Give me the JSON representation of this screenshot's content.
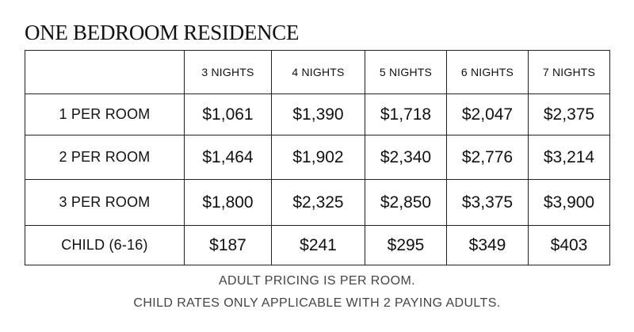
{
  "title": "ONE BEDROOM RESIDENCE",
  "columns": [
    "3 NIGHTS",
    "4 NIGHTS",
    "5 NIGHTS",
    "6 NIGHTS",
    "7 NIGHTS"
  ],
  "rows": [
    {
      "label": "1 PER ROOM",
      "values": [
        "$1,061",
        "$1,390",
        "$1,718",
        "$2,047",
        "$2,375"
      ]
    },
    {
      "label": "2 PER ROOM",
      "values": [
        "$1,464",
        "$1,902",
        "$2,340",
        "$2,776",
        "$3,214"
      ]
    },
    {
      "label": "3 PER ROOM",
      "values": [
        "$1,800",
        "$2,325",
        "$2,850",
        "$3,375",
        "$3,900"
      ]
    },
    {
      "label": "CHILD (6-16)",
      "values": [
        "$187",
        "$241",
        "$295",
        "$349",
        "$403"
      ]
    }
  ],
  "notes": [
    "ADULT PRICING IS PER ROOM.",
    "CHILD RATES ONLY APPLICABLE WITH 2 PAYING ADULTS."
  ]
}
